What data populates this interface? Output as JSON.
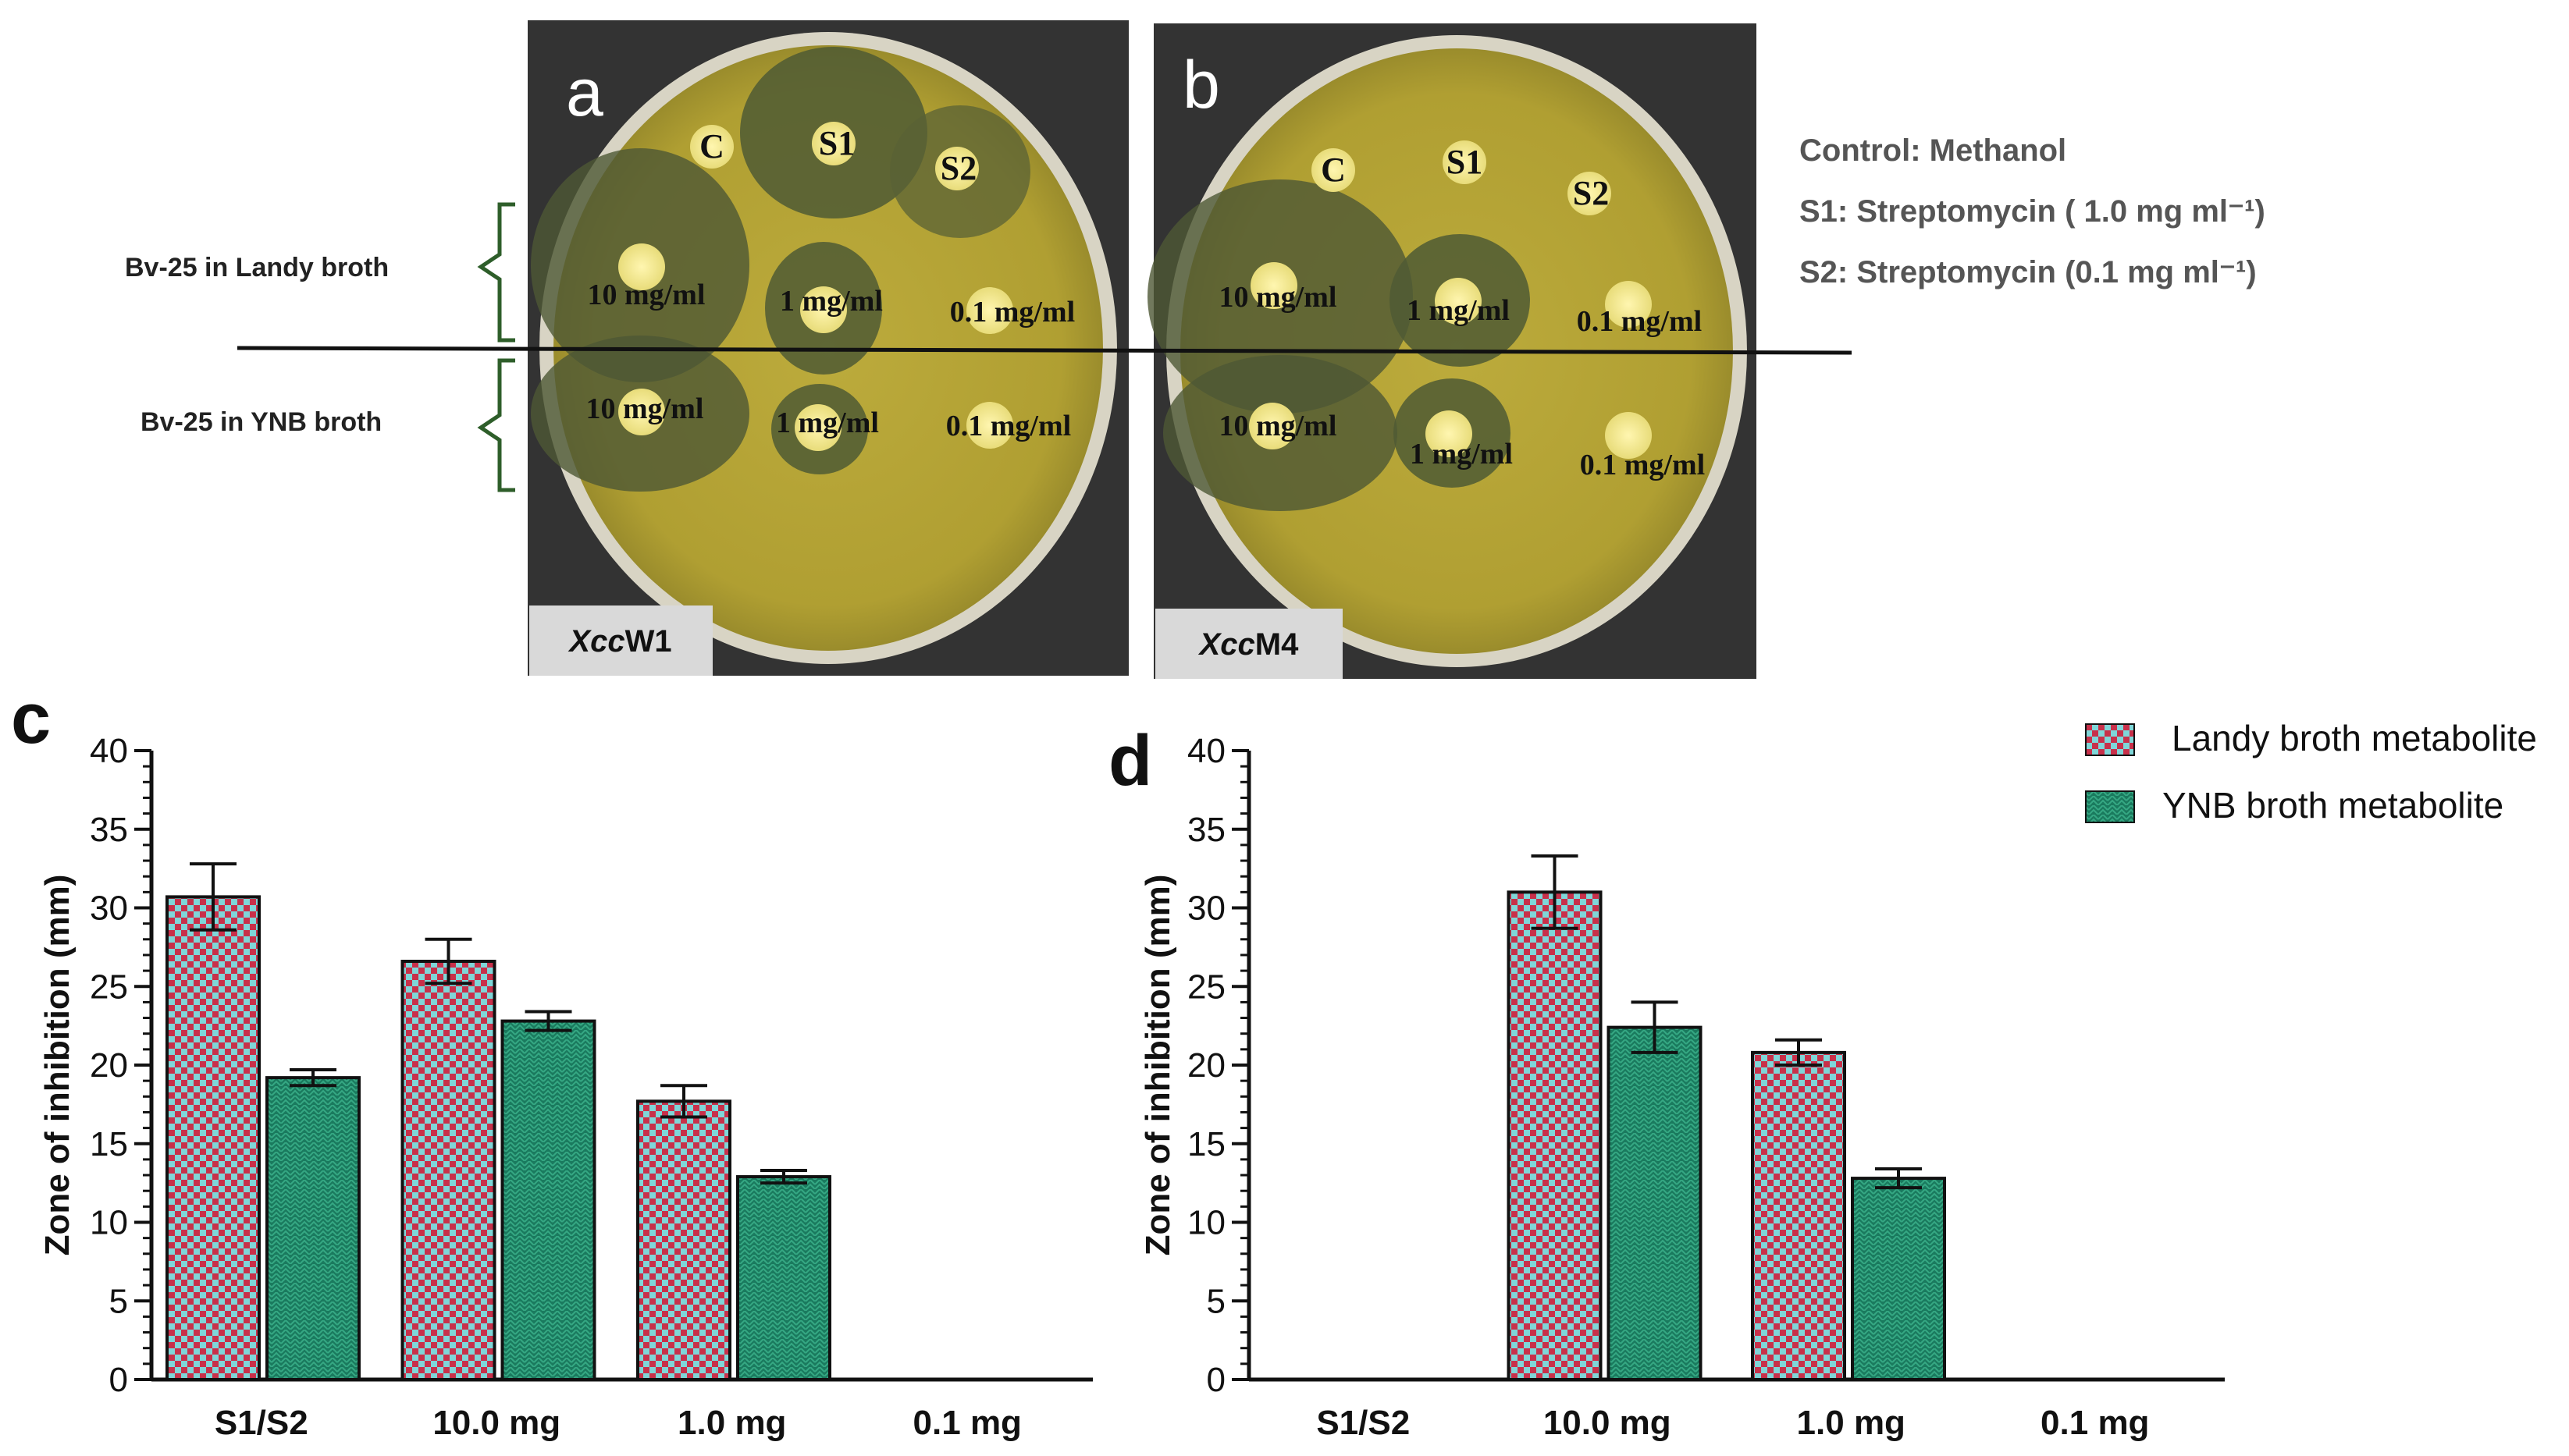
{
  "panel_labels": {
    "a": "a",
    "b": "b",
    "c": "c",
    "d": "d"
  },
  "photos": {
    "left_row_labels": [
      "Bv-25 in Landy  broth",
      "Bv-25 in YNB  broth"
    ],
    "legend_lines": [
      "Control: Methanol",
      "S1: Streptomycin ( 1.0 mg ml⁻¹)",
      "S2: Streptomycin (0.1 mg ml⁻¹)"
    ],
    "plates": [
      {
        "tag_italic": "Xcc",
        "tag_rest": "W1",
        "disc_labels": {
          "c": "C",
          "s1": "S1",
          "s2": "S2"
        },
        "conc_labels_top": [
          "10 mg/ml",
          "1 mg/ml",
          "0.1 mg/ml"
        ],
        "conc_labels_bottom": [
          "10 mg/ml",
          "1 mg/ml",
          "0.1 mg/ml"
        ]
      },
      {
        "tag_italic": "Xcc",
        "tag_rest": "M4",
        "disc_labels": {
          "c": "C",
          "s1": "S1",
          "s2": "S2"
        },
        "conc_labels_top": [
          "10 mg/ml",
          "1 mg/ml",
          "0.1 mg/ml"
        ],
        "conc_labels_bottom": [
          "10 mg/ml",
          "1 mg/ml",
          "0.1 mg/ml"
        ]
      }
    ]
  },
  "legend": {
    "landy": "Landy broth metabolite",
    "ynb": "YNB broth metabolite"
  },
  "colors": {
    "landy_a": "#c8304a",
    "landy_b": "#7fd6d8",
    "ynb_a": "#1a7a5e",
    "ynb_b": "#2e9e7c",
    "agar": "#b8a83a"
  },
  "chart_data": [
    {
      "type": "bar",
      "panel": "c",
      "categories": [
        "S1/S2",
        "10.0  mg",
        "1.0 mg",
        "0.1 mg"
      ],
      "ylabel": "Zone of inhibition (mm)",
      "ylim": [
        0,
        40
      ],
      "yticks": [
        0,
        5,
        10,
        15,
        20,
        25,
        30,
        35,
        40
      ],
      "series": [
        {
          "name": "Landy broth metabolite",
          "values": [
            30.7,
            26.6,
            17.7,
            0
          ],
          "errors": [
            2.1,
            1.4,
            1.0,
            0
          ]
        },
        {
          "name": "YNB broth metabolite",
          "values": [
            19.2,
            22.8,
            12.9,
            0
          ],
          "errors": [
            0.5,
            0.6,
            0.4,
            0
          ]
        }
      ]
    },
    {
      "type": "bar",
      "panel": "d",
      "categories": [
        "S1/S2",
        "10.0  mg",
        "1.0 mg",
        "0.1 mg"
      ],
      "ylabel": "Zone of inhibition (mm)",
      "ylim": [
        0,
        40
      ],
      "yticks": [
        0,
        5,
        10,
        15,
        20,
        25,
        30,
        35,
        40
      ],
      "series": [
        {
          "name": "Landy broth metabolite",
          "values": [
            0,
            31.0,
            20.8,
            0
          ],
          "errors": [
            0,
            2.3,
            0.8,
            0
          ]
        },
        {
          "name": "YNB broth metabolite",
          "values": [
            0,
            22.4,
            12.8,
            0
          ],
          "errors": [
            0,
            1.6,
            0.6,
            0
          ]
        }
      ]
    }
  ]
}
